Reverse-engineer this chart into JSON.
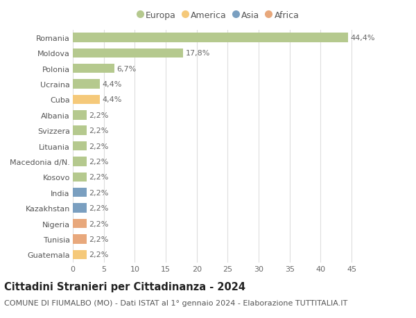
{
  "countries": [
    "Romania",
    "Moldova",
    "Polonia",
    "Ucraina",
    "Cuba",
    "Albania",
    "Svizzera",
    "Lituania",
    "Macedonia d/N.",
    "Kosovo",
    "India",
    "Kazakhstan",
    "Nigeria",
    "Tunisia",
    "Guatemala"
  ],
  "values": [
    44.4,
    17.8,
    6.7,
    4.4,
    4.4,
    2.2,
    2.2,
    2.2,
    2.2,
    2.2,
    2.2,
    2.2,
    2.2,
    2.2,
    2.2
  ],
  "labels": [
    "44,4%",
    "17,8%",
    "6,7%",
    "4,4%",
    "4,4%",
    "2,2%",
    "2,2%",
    "2,2%",
    "2,2%",
    "2,2%",
    "2,2%",
    "2,2%",
    "2,2%",
    "2,2%",
    "2,2%"
  ],
  "continents": [
    "Europa",
    "Europa",
    "Europa",
    "Europa",
    "America",
    "Europa",
    "Europa",
    "Europa",
    "Europa",
    "Europa",
    "Asia",
    "Asia",
    "Africa",
    "Africa",
    "America"
  ],
  "continent_colors": {
    "Europa": "#b5c98e",
    "America": "#f5c97a",
    "Asia": "#7a9fc0",
    "Africa": "#e8a87c"
  },
  "legend_order": [
    "Europa",
    "America",
    "Asia",
    "Africa"
  ],
  "title": "Cittadini Stranieri per Cittadinanza - 2024",
  "subtitle": "COMUNE DI FIUMALBO (MO) - Dati ISTAT al 1° gennaio 2024 - Elaborazione TUTTITALIA.IT",
  "xlim": [
    0,
    47
  ],
  "xticks": [
    0,
    5,
    10,
    15,
    20,
    25,
    30,
    35,
    40,
    45
  ],
  "bg_color": "#ffffff",
  "grid_color": "#dddddd",
  "bar_height": 0.6,
  "label_fontsize": 8,
  "tick_fontsize": 8,
  "title_fontsize": 10.5,
  "subtitle_fontsize": 8
}
